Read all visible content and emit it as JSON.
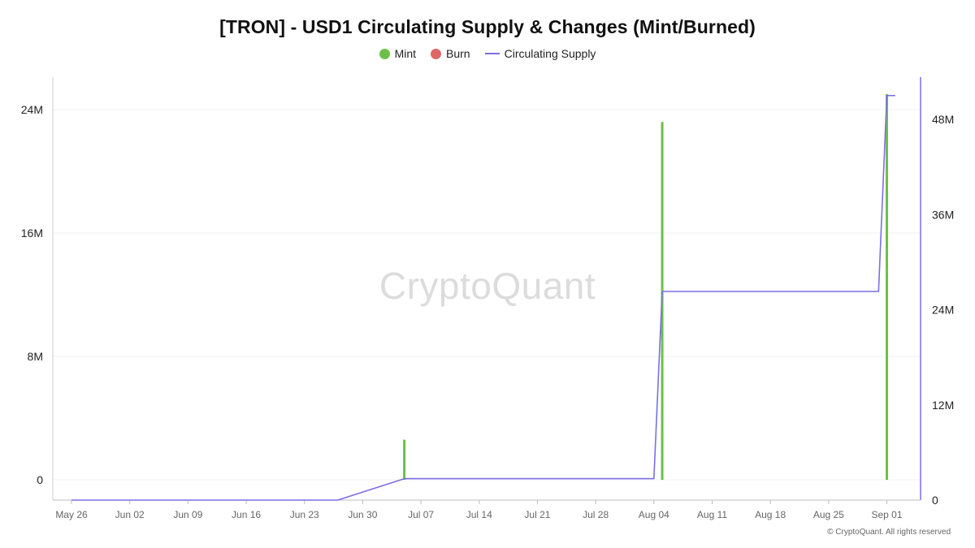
{
  "chart_data": {
    "type": "bar+line",
    "title": "[TRON] - USD1 Circulating Supply & Changes (Mint/Burned)",
    "legend": {
      "placement": "top-center",
      "items": [
        {
          "label": "Mint",
          "color": "#6cc04a",
          "marker": "dot"
        },
        {
          "label": "Burn",
          "color": "#e06666",
          "marker": "dot"
        },
        {
          "label": "Circulating Supply",
          "color": "#7b6ee6",
          "marker": "line"
        }
      ]
    },
    "x_axis": {
      "type": "date",
      "range": [
        "2025-05-26",
        "2025-09-03"
      ],
      "ticks": [
        {
          "date": "2025-05-26",
          "label": "May 26"
        },
        {
          "date": "2025-06-02",
          "label": "Jun 02"
        },
        {
          "date": "2025-06-09",
          "label": "Jun 09"
        },
        {
          "date": "2025-06-16",
          "label": "Jun 16"
        },
        {
          "date": "2025-06-23",
          "label": "Jun 23"
        },
        {
          "date": "2025-06-30",
          "label": "Jun 30"
        },
        {
          "date": "2025-07-07",
          "label": "Jul 07"
        },
        {
          "date": "2025-07-14",
          "label": "Jul 14"
        },
        {
          "date": "2025-07-21",
          "label": "Jul 21"
        },
        {
          "date": "2025-07-28",
          "label": "Jul 28"
        },
        {
          "date": "2025-08-04",
          "label": "Aug 04"
        },
        {
          "date": "2025-08-11",
          "label": "Aug 11"
        },
        {
          "date": "2025-08-18",
          "label": "Aug 18"
        },
        {
          "date": "2025-08-25",
          "label": "Aug 25"
        },
        {
          "date": "2025-09-01",
          "label": "Sep 01"
        }
      ]
    },
    "y_axis_left": {
      "ylim": [
        -1500000,
        27000000
      ],
      "ticks": [
        {
          "value": 0,
          "label": "0"
        },
        {
          "value": 8000000,
          "label": "8M"
        },
        {
          "value": 16000000,
          "label": "16M"
        },
        {
          "value": 24000000,
          "label": "24M"
        }
      ]
    },
    "y_axis_right": {
      "ylim": [
        0,
        54000000
      ],
      "ticks": [
        {
          "value": 0,
          "label": "0"
        },
        {
          "value": 12000000,
          "label": "12M"
        },
        {
          "value": 24000000,
          "label": "24M"
        },
        {
          "value": 36000000,
          "label": "36M"
        },
        {
          "value": 48000000,
          "label": "48M"
        }
      ]
    },
    "mint_bars": [
      {
        "date": "2025-07-05",
        "value": 2600000
      },
      {
        "date": "2025-08-05",
        "value": 23200000
      },
      {
        "date": "2025-09-01",
        "value": 25000000
      }
    ],
    "burn_bars": [],
    "circulating_supply": [
      {
        "date": "2025-05-26",
        "value": 0
      },
      {
        "date": "2025-06-27",
        "value": 0
      },
      {
        "date": "2025-07-05",
        "value": 2700000
      },
      {
        "date": "2025-08-04",
        "value": 2700000
      },
      {
        "date": "2025-08-05",
        "value": 26300000
      },
      {
        "date": "2025-08-31",
        "value": 26300000
      },
      {
        "date": "2025-09-01",
        "value": 51000000
      },
      {
        "date": "2025-09-02",
        "value": 51000000
      }
    ],
    "grid": {
      "horizontal": true,
      "vertical": false
    }
  },
  "watermark": "CryptoQuant",
  "copyright": "© CryptoQuant. All rights reserved"
}
